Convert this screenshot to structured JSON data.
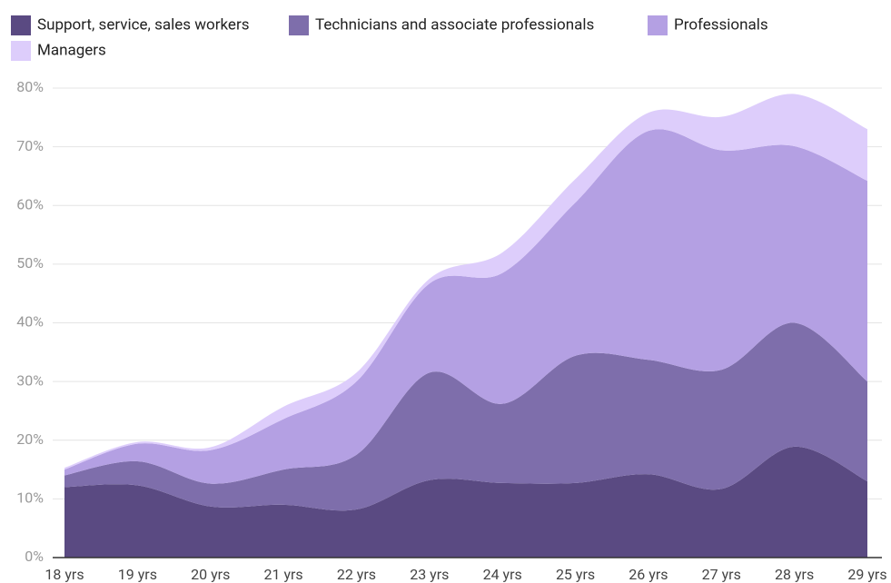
{
  "chart_data": {
    "type": "stacked_area",
    "categories": [
      "18 yrs",
      "19 yrs",
      "20 yrs",
      "21 yrs",
      "22 yrs",
      "23 yrs",
      "24 yrs",
      "25 yrs",
      "26 yrs",
      "27 yrs",
      "28 yrs",
      "29 yrs"
    ],
    "series": [
      {
        "name": "Support, service, sales workers",
        "color": "#5a4a82",
        "values": [
          12,
          12.3,
          8.7,
          9,
          8.2,
          13.2,
          12.7,
          12.7,
          14.2,
          11.7,
          18.9,
          13
        ]
      },
      {
        "name": "Technicians and associate professionals",
        "color": "#7e6eab",
        "values": [
          2,
          4.1,
          3.9,
          6,
          9.3,
          18.3,
          13.5,
          21.7,
          19.5,
          20.3,
          21.1,
          17
        ]
      },
      {
        "name": "Professionals",
        "color": "#b4a0e3",
        "values": [
          1,
          3,
          5.7,
          8.6,
          12.5,
          15.2,
          22.3,
          26.1,
          39,
          37.4,
          30.1,
          34.2
        ]
      },
      {
        "name": "Managers",
        "color": "#ddcdfb",
        "values": [
          0.3,
          0.3,
          0.5,
          2.1,
          1.5,
          0.8,
          3.5,
          4,
          3.1,
          5.7,
          8.9,
          8.8
        ]
      }
    ],
    "ylim": [
      0,
      80
    ],
    "yticks": [
      {
        "value": 0,
        "label": "0%"
      },
      {
        "value": 10,
        "label": "10%"
      },
      {
        "value": 20,
        "label": "20%"
      },
      {
        "value": 30,
        "label": "30%"
      },
      {
        "value": 40,
        "label": "40%"
      },
      {
        "value": 50,
        "label": "50%"
      },
      {
        "value": 60,
        "label": "60%"
      },
      {
        "value": 70,
        "label": "70%"
      },
      {
        "value": 80,
        "label": "80%"
      }
    ],
    "grid": true,
    "legend": "top"
  }
}
